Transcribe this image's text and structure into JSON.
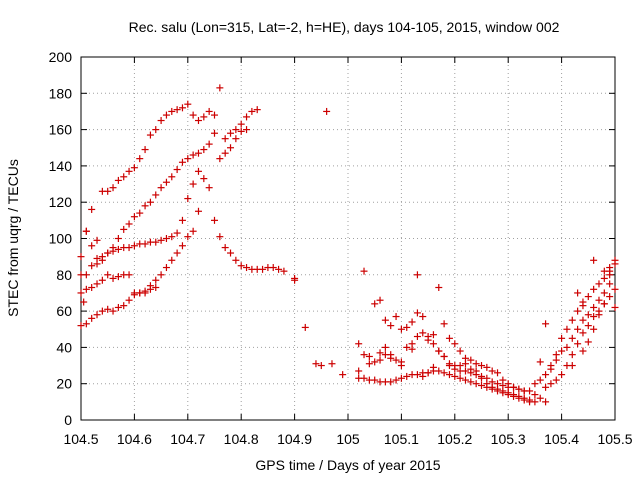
{
  "chart_data": {
    "type": "scatter",
    "title": "Rec. salu (Lon=315, Lat=-2, h=HE), days 104-105, 2015, window 002",
    "xlabel": "GPS time / Days of year 2015",
    "ylabel": "STEC from uqrg / TECUs",
    "xlim": [
      104.5,
      105.5
    ],
    "ylim": [
      0,
      200
    ],
    "xticks": [
      104.5,
      104.6,
      104.7,
      104.8,
      104.9,
      105,
      105.1,
      105.2,
      105.3,
      105.4,
      105.5
    ],
    "xtick_labels": [
      "104.5",
      "104.6",
      "104.7",
      "104.8",
      "104.9",
      "105",
      "105.1",
      "105.2",
      "105.3",
      "105.4",
      "105.5"
    ],
    "yticks": [
      0,
      20,
      40,
      60,
      80,
      100,
      120,
      140,
      160,
      180,
      200
    ],
    "ytick_labels": [
      "0",
      "20",
      "40",
      "60",
      "80",
      "100",
      "120",
      "140",
      "160",
      "180",
      "200"
    ],
    "grid": true,
    "marker": "+",
    "marker_color": "#cc0000",
    "series": [
      {
        "x": [
          104.505,
          104.51,
          104.52,
          104.53,
          104.54,
          104.55,
          104.56,
          104.57,
          104.58,
          104.59,
          104.6,
          104.61,
          104.62,
          104.63,
          104.64,
          104.65,
          104.66,
          104.67,
          104.68,
          104.69,
          104.7,
          104.71,
          104.72,
          104.73,
          104.74,
          104.75,
          104.76,
          104.77,
          104.78,
          104.79,
          104.8,
          104.81,
          104.82,
          104.83
        ],
        "y": [
          65,
          104,
          116,
          99,
          126,
          126,
          128,
          132,
          134,
          137,
          139,
          144,
          149,
          157,
          160,
          165,
          168,
          170,
          171,
          172,
          174,
          168,
          165,
          167,
          170,
          168,
          183,
          155,
          158,
          160,
          163,
          167,
          170,
          171
        ]
      },
      {
        "x": [
          104.5,
          104.51,
          104.52,
          104.53,
          104.54,
          104.55,
          104.56,
          104.57,
          104.58,
          104.59,
          104.6,
          104.61,
          104.62,
          104.63,
          104.64,
          104.65,
          104.66,
          104.67,
          104.68,
          104.69,
          104.7,
          104.71,
          104.72,
          104.73,
          104.74,
          104.75,
          104.76,
          104.77,
          104.78,
          104.79,
          104.8,
          104.81
        ],
        "y": [
          90,
          104,
          96,
          86,
          88,
          92,
          95,
          100,
          105,
          108,
          112,
          114,
          118,
          120,
          124,
          128,
          131,
          134,
          138,
          142,
          144,
          146,
          147,
          149,
          152,
          158,
          144,
          147,
          150,
          155,
          159,
          160
        ]
      },
      {
        "x": [
          104.5,
          104.51,
          104.52,
          104.53,
          104.54,
          104.55,
          104.56,
          104.57,
          104.58,
          104.59,
          104.6,
          104.61,
          104.62,
          104.63,
          104.64,
          104.65,
          104.66,
          104.67,
          104.68,
          104.69,
          104.7,
          104.71,
          104.72,
          104.73,
          104.74,
          104.75,
          104.76,
          104.77,
          104.78,
          104.79,
          104.8,
          104.81,
          104.82,
          104.83,
          104.84,
          104.85,
          104.86,
          104.87,
          104.88,
          104.9
        ],
        "y": [
          80,
          80,
          85,
          89,
          90,
          92,
          93,
          94,
          95,
          95,
          96,
          97,
          97,
          98,
          98,
          99,
          100,
          101,
          103,
          110,
          122,
          130,
          137,
          133,
          128,
          110,
          101,
          95,
          92,
          88,
          85,
          84,
          83,
          83,
          83,
          84,
          84,
          83,
          82,
          78
        ]
      },
      {
        "x": [
          104.5,
          104.51,
          104.52,
          104.53,
          104.54,
          104.55,
          104.56,
          104.57,
          104.58,
          104.59,
          104.6,
          104.61,
          104.62,
          104.63,
          104.64,
          104.65,
          104.66,
          104.67,
          104.68,
          104.69,
          104.7,
          104.71,
          104.72
        ],
        "y": [
          70,
          72,
          73,
          75,
          77,
          80,
          78,
          79,
          80,
          80,
          70,
          70,
          71,
          74,
          77,
          80,
          84,
          88,
          92,
          96,
          101,
          104,
          115
        ]
      },
      {
        "x": [
          104.5,
          104.51,
          104.52,
          104.53,
          104.54,
          104.55,
          104.56,
          104.57,
          104.58,
          104.59,
          104.6,
          104.61,
          104.62,
          104.63,
          104.64
        ],
        "y": [
          52,
          53,
          56,
          58,
          60,
          61,
          60,
          62,
          63,
          66,
          69,
          70,
          70,
          72,
          73
        ]
      },
      {
        "x": [
          104.9,
          104.92,
          104.94,
          104.95,
          104.97,
          104.99
        ],
        "y": [
          77,
          51,
          31,
          30,
          31,
          25
        ]
      },
      {
        "x": [
          104.96
        ],
        "y": [
          170
        ]
      },
      {
        "x": [
          105.02,
          105.03,
          105.04,
          105.05,
          105.06,
          105.07,
          105.08,
          105.09,
          105.1,
          105.11,
          105.12,
          105.13,
          105.14,
          105.15,
          105.16,
          105.17,
          105.18,
          105.19,
          105.2,
          105.21,
          105.22,
          105.23,
          105.24,
          105.25,
          105.26,
          105.27,
          105.28,
          105.29,
          105.3,
          105.31,
          105.32,
          105.33,
          105.34,
          105.35
        ],
        "y": [
          23,
          23,
          22,
          22,
          21,
          21,
          21,
          22,
          23,
          24,
          25,
          25,
          26,
          26,
          27,
          27,
          26,
          25,
          24,
          23,
          22,
          21,
          20,
          19,
          18,
          17,
          16,
          15,
          14,
          13,
          12,
          11,
          10,
          10
        ]
      },
      {
        "x": [
          105.02,
          105.03,
          105.04,
          105.05,
          105.06,
          105.07,
          105.08,
          105.09,
          105.1,
          105.11,
          105.12,
          105.13,
          105.14,
          105.15,
          105.16,
          105.17,
          105.18,
          105.19,
          105.2,
          105.21,
          105.22,
          105.23,
          105.24,
          105.25,
          105.26,
          105.27,
          105.28,
          105.29,
          105.3,
          105.31,
          105.32,
          105.33,
          105.34
        ],
        "y": [
          27,
          36,
          31,
          32,
          33,
          36,
          34,
          33,
          32,
          40,
          42,
          46,
          48,
          44,
          42,
          38,
          35,
          30,
          28,
          27,
          27,
          26,
          25,
          23,
          20,
          18,
          17,
          16,
          15,
          14,
          13,
          12,
          11
        ]
      },
      {
        "x": [
          105.03,
          105.05,
          105.06,
          105.07,
          105.08,
          105.09,
          105.1,
          105.11,
          105.12,
          105.13,
          105.14,
          105.15,
          105.16,
          105.17,
          105.18,
          105.19,
          105.2,
          105.21,
          105.22,
          105.23,
          105.24,
          105.25,
          105.26,
          105.27,
          105.28,
          105.29,
          105.3,
          105.31,
          105.32,
          105.33
        ],
        "y": [
          82,
          64,
          66,
          55,
          52,
          57,
          50,
          51,
          54,
          59,
          57,
          46,
          47,
          73,
          53,
          45,
          42,
          38,
          34,
          33,
          31,
          30,
          29,
          27,
          26,
          22,
          20,
          18,
          17,
          16
        ]
      },
      {
        "x": [
          105.02,
          105.04,
          105.06,
          105.07,
          105.08,
          105.1,
          105.12,
          105.13,
          105.14,
          105.15,
          105.16,
          105.17,
          105.18,
          105.19,
          105.2,
          105.21,
          105.22,
          105.23,
          105.24,
          105.25,
          105.26,
          105.27,
          105.28,
          105.29,
          105.3,
          105.31,
          105.32,
          105.33,
          105.34,
          105.35,
          105.36,
          105.37
        ],
        "y": [
          42,
          35,
          37,
          40,
          36,
          30,
          39,
          80,
          24,
          26,
          29,
          38,
          35,
          31,
          30,
          30,
          31,
          28,
          27,
          24,
          23,
          21,
          20,
          19,
          18,
          18,
          17,
          16,
          16,
          14,
          12,
          10
        ]
      },
      {
        "x": [
          105.35,
          105.36,
          105.37,
          105.38,
          105.39,
          105.4,
          105.41,
          105.42,
          105.43,
          105.44,
          105.45,
          105.46,
          105.47,
          105.48,
          105.49
        ],
        "y": [
          20,
          22,
          25,
          28,
          33,
          38,
          40,
          45,
          50,
          55,
          58,
          62,
          66,
          70,
          75
        ]
      },
      {
        "x": [
          105.36,
          105.37,
          105.38,
          105.39,
          105.4,
          105.41,
          105.42,
          105.43,
          105.44,
          105.45,
          105.46,
          105.47,
          105.48,
          105.49,
          105.5
        ],
        "y": [
          32,
          53,
          30,
          36,
          45,
          50,
          55,
          60,
          65,
          68,
          72,
          75,
          78,
          82,
          86
        ]
      },
      {
        "x": [
          105.37,
          105.38,
          105.39,
          105.4,
          105.41,
          105.42,
          105.43,
          105.44,
          105.45,
          105.46,
          105.47,
          105.48,
          105.49,
          105.5
        ],
        "y": [
          18,
          20,
          22,
          25,
          30,
          36,
          42,
          48,
          52,
          57,
          60,
          64,
          68,
          72
        ]
      },
      {
        "x": [
          105.42,
          105.44,
          105.45,
          105.46,
          105.47,
          105.48,
          105.49,
          105.5
        ],
        "y": [
          30,
          38,
          43,
          50,
          58,
          64,
          84,
          88
        ]
      },
      {
        "x": [
          105.43,
          105.44,
          105.46,
          105.48,
          105.49,
          105.5
        ],
        "y": [
          70,
          63,
          88,
          82,
          80,
          62
        ]
      }
    ]
  }
}
